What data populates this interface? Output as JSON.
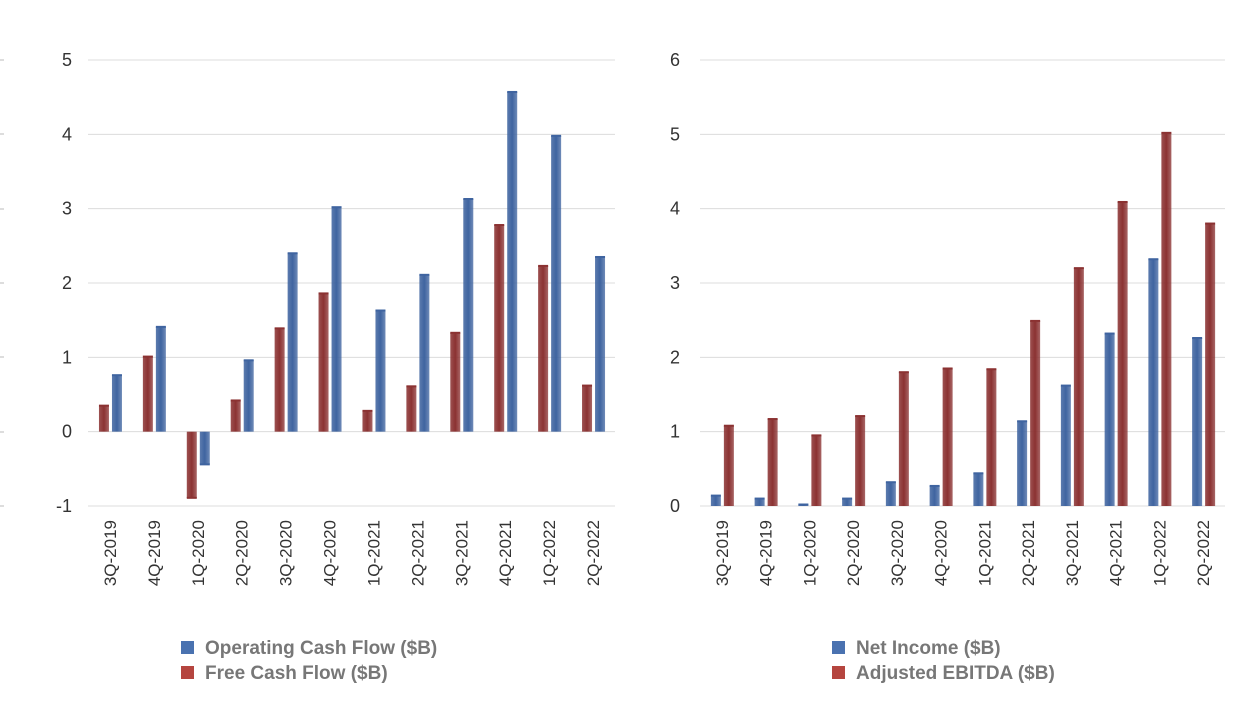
{
  "chart_data": [
    {
      "type": "bar",
      "categories": [
        "3Q-2019",
        "4Q-2019",
        "1Q-2020",
        "2Q-2020",
        "3Q-2020",
        "4Q-2020",
        "1Q-2021",
        "2Q-2021",
        "3Q-2021",
        "4Q-2021",
        "1Q-2022",
        "2Q-2022"
      ],
      "series": [
        {
          "name": "Free Cash Flow ($B)",
          "color": "#8b3232",
          "values": [
            0.35,
            1.01,
            -0.89,
            0.42,
            1.39,
            1.86,
            0.28,
            0.61,
            1.33,
            2.78,
            2.23,
            0.62
          ]
        },
        {
          "name": "Operating Cash Flow ($B)",
          "color": "#3f64a0",
          "values": [
            0.76,
            1.41,
            -0.44,
            0.96,
            2.4,
            3.02,
            1.63,
            2.11,
            3.13,
            4.57,
            3.98,
            2.35
          ]
        }
      ],
      "legend": [
        {
          "label": "Operating Cash Flow ($B)",
          "color": "#4a72b0"
        },
        {
          "label": "Free Cash Flow ($B)",
          "color": "#b5453f"
        }
      ],
      "ylim": [
        -1,
        5
      ],
      "yticks": [
        "-1",
        "0",
        "1",
        "2",
        "3",
        "4",
        "5"
      ],
      "title": "",
      "xlabel": "",
      "ylabel": ""
    },
    {
      "type": "bar",
      "categories": [
        "3Q-2019",
        "4Q-2019",
        "1Q-2020",
        "2Q-2020",
        "3Q-2020",
        "4Q-2020",
        "1Q-2021",
        "2Q-2021",
        "3Q-2021",
        "4Q-2021",
        "1Q-2022",
        "2Q-2022"
      ],
      "series": [
        {
          "name": "Net Income ($B)",
          "color": "#3f64a0",
          "values": [
            0.14,
            0.1,
            0.02,
            0.1,
            0.32,
            0.27,
            0.44,
            1.14,
            1.62,
            2.32,
            3.32,
            2.26
          ]
        },
        {
          "name": "Adjusted EBITDA ($B)",
          "color": "#8b3232",
          "values": [
            1.08,
            1.17,
            0.95,
            1.21,
            1.8,
            1.85,
            1.84,
            2.49,
            3.2,
            4.09,
            5.02,
            3.8
          ]
        }
      ],
      "legend": [
        {
          "label": "Net Income ($B)",
          "color": "#4a72b0"
        },
        {
          "label": "Adjusted EBITDA ($B)",
          "color": "#b5453f"
        }
      ],
      "ylim": [
        0,
        6
      ],
      "yticks": [
        "0",
        "1",
        "2",
        "3",
        "4",
        "5",
        "6"
      ],
      "title": "",
      "xlabel": "",
      "ylabel": ""
    }
  ]
}
